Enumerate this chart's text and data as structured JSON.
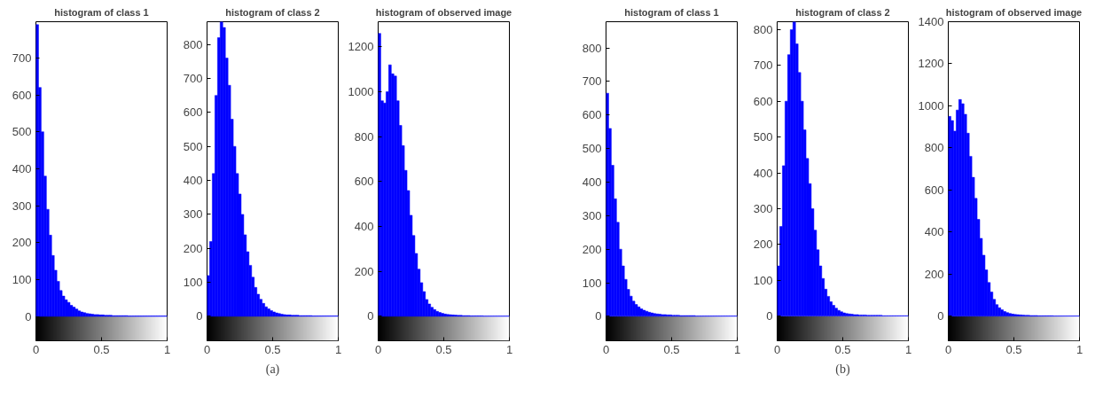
{
  "chart_data": [
    {
      "type": "histogram",
      "title": "histogram of class 1",
      "color": "#0000ff",
      "xlim": [
        0,
        1
      ],
      "xticks": [
        0,
        0.5,
        1
      ],
      "ylim": [
        -66,
        798
      ],
      "yticks": [
        0,
        100,
        200,
        300,
        400,
        500,
        600,
        700
      ],
      "bands": [
        {
          "axis": "y",
          "from": -66,
          "to": 0
        }
      ],
      "bins": [
        0,
        0.02,
        0.04,
        0.06,
        0.08,
        0.1,
        0.12,
        0.14,
        0.16,
        0.18,
        0.2,
        0.22,
        0.24,
        0.26,
        0.28,
        0.3,
        0.32,
        0.34,
        0.36,
        0.38,
        0.4,
        0.42,
        0.44,
        0.46,
        0.48,
        0.5,
        0.52,
        0.54,
        0.56,
        0.58,
        0.6,
        0.62,
        0.64,
        0.66,
        0.68,
        0.7,
        0.72,
        0.74,
        0.76,
        0.78,
        0.8,
        0.82,
        0.84,
        0.86,
        0.88,
        0.9,
        0.92,
        0.94,
        0.96,
        0.98,
        1
      ],
      "values": [
        790,
        620,
        500,
        380,
        290,
        220,
        165,
        125,
        95,
        70,
        55,
        45,
        38,
        30,
        25,
        20,
        15,
        12,
        10,
        8,
        7,
        6,
        5,
        5,
        4,
        4,
        3,
        3,
        3,
        2,
        2,
        2,
        2,
        2,
        2,
        1,
        1,
        1,
        1,
        1,
        1,
        1,
        1,
        1,
        1,
        1,
        1,
        1,
        1,
        1
      ]
    },
    {
      "type": "histogram",
      "title": "histogram of class 2",
      "color": "#0000ff",
      "xlim": [
        0,
        1
      ],
      "xticks": [
        0,
        0.5,
        1
      ],
      "ylim": [
        -72,
        867
      ],
      "yticks": [
        0,
        100,
        200,
        300,
        400,
        500,
        600,
        700,
        800
      ],
      "bands": [
        {
          "axis": "y",
          "from": -72,
          "to": 0
        }
      ],
      "annotations": [
        "(a)"
      ],
      "bins": [
        0,
        0.02,
        0.04,
        0.06,
        0.08,
        0.1,
        0.12,
        0.14,
        0.16,
        0.18,
        0.2,
        0.22,
        0.24,
        0.26,
        0.28,
        0.3,
        0.32,
        0.34,
        0.36,
        0.38,
        0.4,
        0.42,
        0.44,
        0.46,
        0.48,
        0.5,
        0.52,
        0.54,
        0.56,
        0.58,
        0.6,
        0.62,
        0.64,
        0.66,
        0.68,
        0.7,
        0.72,
        0.74,
        0.76,
        0.78,
        0.8,
        0.82,
        0.84,
        0.86,
        0.88,
        0.9,
        0.92,
        0.94,
        0.96,
        0.98,
        1
      ],
      "values": [
        120,
        220,
        420,
        650,
        820,
        867,
        850,
        760,
        680,
        580,
        500,
        420,
        360,
        300,
        240,
        190,
        150,
        115,
        85,
        65,
        50,
        38,
        28,
        22,
        17,
        13,
        10,
        8,
        6,
        5,
        4,
        4,
        3,
        3,
        3,
        2,
        2,
        2,
        2,
        2,
        1,
        1,
        1,
        1,
        1,
        1,
        1,
        1,
        1,
        1
      ]
    },
    {
      "type": "histogram",
      "title": "histogram of observed image",
      "color": "#0000ff",
      "xlim": [
        0,
        1
      ],
      "xticks": [
        0,
        0.5,
        1
      ],
      "ylim": [
        -109,
        1312
      ],
      "yticks": [
        0,
        200,
        400,
        600,
        800,
        1000,
        1200
      ],
      "bands": [
        {
          "axis": "y",
          "from": -109,
          "to": 0
        }
      ],
      "bins": [
        0,
        0.02,
        0.04,
        0.06,
        0.08,
        0.1,
        0.12,
        0.14,
        0.16,
        0.18,
        0.2,
        0.22,
        0.24,
        0.26,
        0.28,
        0.3,
        0.32,
        0.34,
        0.36,
        0.38,
        0.4,
        0.42,
        0.44,
        0.46,
        0.48,
        0.5,
        0.52,
        0.54,
        0.56,
        0.58,
        0.6,
        0.62,
        0.64,
        0.66,
        0.68,
        0.7,
        0.72,
        0.74,
        0.76,
        0.78,
        0.8,
        0.82,
        0.84,
        0.86,
        0.88,
        0.9,
        0.92,
        0.94,
        0.96,
        0.98,
        1
      ],
      "values": [
        1260,
        960,
        950,
        1000,
        1120,
        1080,
        1070,
        960,
        850,
        760,
        650,
        560,
        450,
        360,
        280,
        210,
        150,
        110,
        75,
        55,
        40,
        30,
        22,
        17,
        13,
        10,
        8,
        7,
        6,
        5,
        4,
        4,
        3,
        3,
        3,
        2,
        2,
        2,
        2,
        2,
        1,
        1,
        1,
        1,
        1,
        1,
        1,
        1,
        1,
        1
      ]
    },
    {
      "type": "histogram",
      "title": "histogram of class 1",
      "color": "#0000ff",
      "xlim": [
        0,
        1
      ],
      "xticks": [
        0,
        0.5,
        1
      ],
      "ylim": [
        -73,
        878
      ],
      "yticks": [
        0,
        100,
        200,
        300,
        400,
        500,
        600,
        700,
        800
      ],
      "bands": [
        {
          "axis": "y",
          "from": -73,
          "to": 0
        }
      ],
      "bins": [
        0,
        0.02,
        0.04,
        0.06,
        0.08,
        0.1,
        0.12,
        0.14,
        0.16,
        0.18,
        0.2,
        0.22,
        0.24,
        0.26,
        0.28,
        0.3,
        0.32,
        0.34,
        0.36,
        0.38,
        0.4,
        0.42,
        0.44,
        0.46,
        0.48,
        0.5,
        0.52,
        0.54,
        0.56,
        0.58,
        0.6,
        0.62,
        0.64,
        0.66,
        0.68,
        0.7,
        0.72,
        0.74,
        0.76,
        0.78,
        0.8,
        0.82,
        0.84,
        0.86,
        0.88,
        0.9,
        0.92,
        0.94,
        0.96,
        0.98,
        1
      ],
      "values": [
        665,
        560,
        450,
        350,
        280,
        200,
        150,
        110,
        80,
        60,
        45,
        35,
        28,
        22,
        18,
        15,
        12,
        10,
        8,
        7,
        6,
        5,
        5,
        4,
        4,
        3,
        3,
        3,
        2,
        2,
        2,
        2,
        2,
        2,
        1,
        1,
        1,
        1,
        1,
        1,
        1,
        1,
        1,
        1,
        1,
        1,
        1,
        1,
        1,
        1
      ]
    },
    {
      "type": "histogram",
      "title": "histogram of class 2",
      "color": "#0000ff",
      "xlim": [
        0,
        1
      ],
      "xticks": [
        0,
        0.5,
        1
      ],
      "ylim": [
        -69,
        822
      ],
      "yticks": [
        0,
        100,
        200,
        300,
        400,
        500,
        600,
        700,
        800
      ],
      "bands": [
        {
          "axis": "y",
          "from": -69,
          "to": 0
        }
      ],
      "annotations": [
        "(b)"
      ],
      "bins": [
        0,
        0.02,
        0.04,
        0.06,
        0.08,
        0.1,
        0.12,
        0.14,
        0.16,
        0.18,
        0.2,
        0.22,
        0.24,
        0.26,
        0.28,
        0.3,
        0.32,
        0.34,
        0.36,
        0.38,
        0.4,
        0.42,
        0.44,
        0.46,
        0.48,
        0.5,
        0.52,
        0.54,
        0.56,
        0.58,
        0.6,
        0.62,
        0.64,
        0.66,
        0.68,
        0.7,
        0.72,
        0.74,
        0.76,
        0.78,
        0.8,
        0.82,
        0.84,
        0.86,
        0.88,
        0.9,
        0.92,
        0.94,
        0.96,
        0.98,
        1
      ],
      "values": [
        140,
        250,
        420,
        600,
        730,
        800,
        822,
        760,
        680,
        600,
        520,
        440,
        370,
        300,
        240,
        185,
        140,
        105,
        75,
        55,
        40,
        30,
        22,
        16,
        12,
        9,
        7,
        6,
        5,
        4,
        4,
        3,
        3,
        3,
        2,
        2,
        2,
        2,
        2,
        2,
        1,
        1,
        1,
        1,
        1,
        1,
        1,
        1,
        1,
        1
      ]
    },
    {
      "type": "histogram",
      "title": "histogram of observed image",
      "color": "#0000ff",
      "xlim": [
        0,
        1
      ],
      "xticks": [
        0,
        0.5,
        1
      ],
      "ylim": [
        -117,
        1400
      ],
      "yticks": [
        0,
        200,
        400,
        600,
        800,
        1000,
        1200,
        1400
      ],
      "bands": [
        {
          "axis": "y",
          "from": -117,
          "to": 0
        }
      ],
      "bins": [
        0,
        0.02,
        0.04,
        0.06,
        0.08,
        0.1,
        0.12,
        0.14,
        0.16,
        0.18,
        0.2,
        0.22,
        0.24,
        0.26,
        0.28,
        0.3,
        0.32,
        0.34,
        0.36,
        0.38,
        0.4,
        0.42,
        0.44,
        0.46,
        0.48,
        0.5,
        0.52,
        0.54,
        0.56,
        0.58,
        0.6,
        0.62,
        0.64,
        0.66,
        0.68,
        0.7,
        0.72,
        0.74,
        0.76,
        0.78,
        0.8,
        0.82,
        0.84,
        0.86,
        0.88,
        0.9,
        0.92,
        0.94,
        0.96,
        0.98,
        1
      ],
      "values": [
        950,
        930,
        880,
        980,
        1030,
        1010,
        960,
        870,
        760,
        660,
        560,
        460,
        370,
        290,
        220,
        160,
        115,
        80,
        55,
        40,
        30,
        22,
        17,
        13,
        10,
        8,
        7,
        6,
        5,
        4,
        4,
        3,
        3,
        3,
        2,
        2,
        2,
        2,
        2,
        2,
        1,
        1,
        1,
        1,
        1,
        1,
        1,
        1,
        1,
        1
      ]
    }
  ]
}
